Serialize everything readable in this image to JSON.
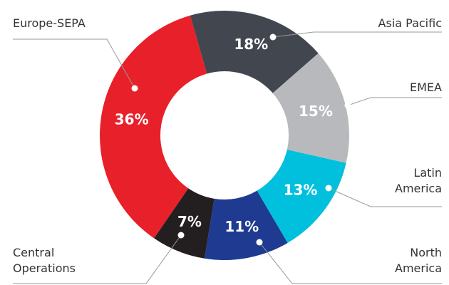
{
  "chart_data": {
    "type": "donut",
    "categories": [
      "Asia Pacific",
      "EMEA",
      "Latin America",
      "North America",
      "Central Operations",
      "Europe-SEPA"
    ],
    "values": [
      18,
      15,
      13,
      11,
      7,
      36
    ],
    "value_labels": [
      "18%",
      "15%",
      "13%",
      "11%",
      "7%",
      "36%"
    ],
    "colors": [
      "#42474f",
      "#b8b9bc",
      "#00c0dd",
      "#1e3a91",
      "#231f20",
      "#e8202a"
    ]
  }
}
